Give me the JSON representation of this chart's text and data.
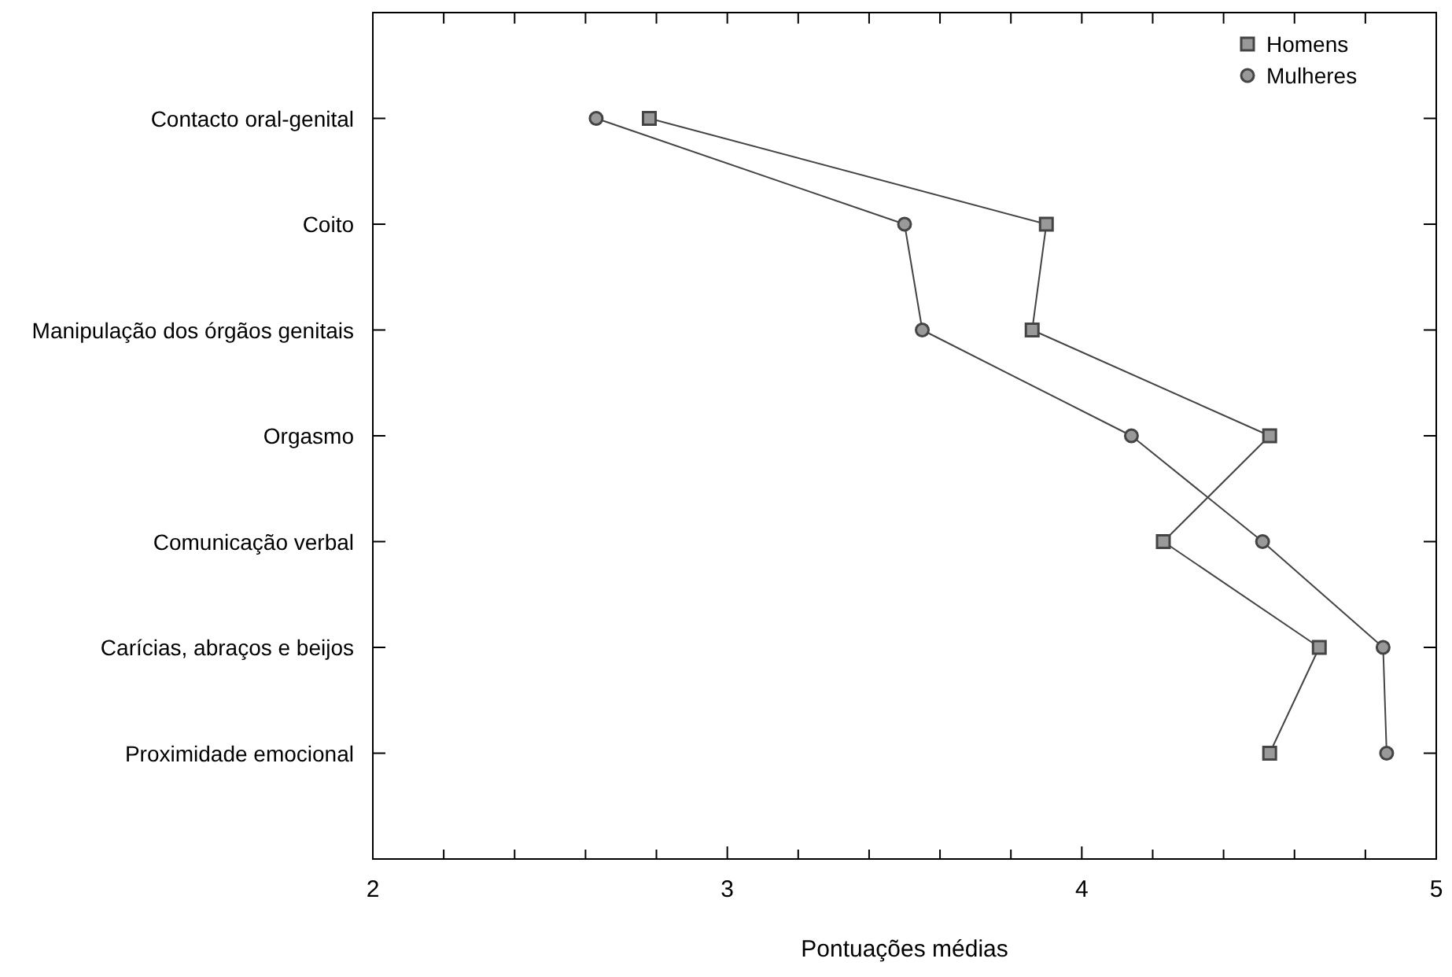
{
  "chart_data": {
    "type": "line",
    "orientation": "horizontal",
    "xlabel": "Pontuações médias",
    "categories": [
      "Contacto oral-genital",
      "Coito",
      "Manipulação dos órgãos genitais",
      "Orgasmo",
      "Comunicação verbal",
      "Carícias, abraços e beijos",
      "Proximidade emocional"
    ],
    "series": [
      {
        "name": "Homens",
        "color": "#444444",
        "marker": "square",
        "values": [
          2.78,
          3.9,
          3.86,
          4.53,
          4.23,
          4.67,
          4.53
        ]
      },
      {
        "name": "Mulheres",
        "color": "#444444",
        "marker": "circle",
        "values": [
          2.63,
          3.5,
          3.55,
          4.14,
          4.51,
          4.85,
          4.86
        ]
      }
    ],
    "xlim": [
      2,
      5
    ],
    "xticks": [
      2,
      {
        "value": 2.2,
        "label": null
      },
      {
        "value": 2.4,
        "label": null
      },
      {
        "value": 2.6,
        "label": null
      },
      {
        "value": 2.8,
        "label": null
      },
      3,
      {
        "value": 3.2,
        "label": null
      },
      {
        "value": 3.4,
        "label": null
      },
      {
        "value": 3.6,
        "label": null
      },
      {
        "value": 3.8,
        "label": null
      },
      4,
      {
        "value": 4.2,
        "label": null
      },
      {
        "value": 4.4,
        "label": null
      },
      {
        "value": 4.6,
        "label": null
      },
      {
        "value": 4.8,
        "label": null
      },
      5
    ],
    "legend": "top right",
    "grid": false,
    "line_style": "solid"
  }
}
